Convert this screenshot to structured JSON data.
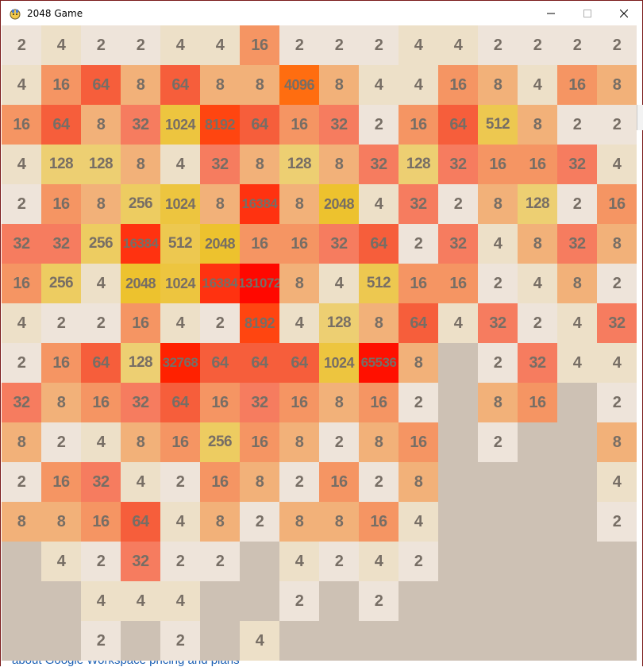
{
  "window": {
    "title": "2048 Game"
  },
  "icons": {
    "app": "game-icon",
    "minimize": "minimize-icon",
    "maximize": "maximize-icon",
    "close": "close-icon"
  },
  "background_link_text": "about Google Workspace pricing and plans",
  "colors": {
    "empty": "#cdc1b4",
    "2": "#eee4da",
    "4": "#ede0c8",
    "8": "#f2b179",
    "16": "#f59563",
    "32": "#f67c5f",
    "64": "#f65e3b",
    "128": "#edcf72",
    "256": "#edcc61",
    "512": "#edc850",
    "1024": "#edc53f",
    "2048": "#edc22e",
    "4096": "#ff6d10",
    "8192": "#ff4510",
    "16384": "#ff3210",
    "32768": "#ff2100",
    "65536": "#ff1000",
    "131072": "#ff0800"
  },
  "grid": [
    [
      2,
      4,
      2,
      2,
      4,
      4,
      16,
      2,
      2,
      2,
      4,
      4,
      2,
      2,
      2,
      2
    ],
    [
      4,
      16,
      64,
      8,
      64,
      8,
      8,
      4096,
      8,
      4,
      4,
      16,
      8,
      4,
      16,
      8
    ],
    [
      16,
      64,
      8,
      32,
      1024,
      8192,
      64,
      16,
      32,
      2,
      16,
      64,
      512,
      8,
      2,
      2
    ],
    [
      4,
      128,
      128,
      8,
      4,
      32,
      8,
      128,
      8,
      32,
      128,
      32,
      16,
      16,
      32,
      4
    ],
    [
      2,
      16,
      8,
      256,
      1024,
      8,
      16384,
      8,
      2048,
      4,
      32,
      2,
      8,
      128,
      2,
      16
    ],
    [
      32,
      32,
      256,
      16384,
      512,
      2048,
      16,
      16,
      32,
      64,
      2,
      32,
      4,
      8,
      32,
      8
    ],
    [
      16,
      256,
      4,
      2048,
      1024,
      16384,
      131072,
      8,
      4,
      512,
      16,
      16,
      2,
      4,
      8,
      2
    ],
    [
      4,
      2,
      2,
      16,
      4,
      2,
      8192,
      4,
      128,
      8,
      64,
      4,
      32,
      2,
      4,
      32
    ],
    [
      2,
      16,
      64,
      128,
      32768,
      64,
      64,
      64,
      1024,
      65536,
      8,
      0,
      2,
      32,
      4,
      4
    ],
    [
      32,
      8,
      16,
      32,
      64,
      16,
      32,
      16,
      8,
      16,
      2,
      0,
      8,
      16,
      0,
      2
    ],
    [
      8,
      2,
      4,
      8,
      16,
      256,
      16,
      8,
      2,
      8,
      16,
      0,
      2,
      0,
      0,
      8
    ],
    [
      2,
      16,
      32,
      4,
      2,
      16,
      8,
      2,
      16,
      2,
      8,
      0,
      0,
      0,
      0,
      4
    ],
    [
      8,
      8,
      16,
      64,
      4,
      8,
      2,
      8,
      8,
      16,
      4,
      0,
      0,
      0,
      0,
      2
    ],
    [
      0,
      4,
      2,
      32,
      2,
      2,
      0,
      4,
      2,
      4,
      2,
      0,
      0,
      0,
      0,
      0
    ],
    [
      0,
      0,
      4,
      4,
      4,
      0,
      0,
      2,
      0,
      2,
      0,
      0,
      0,
      0,
      0,
      0
    ],
    [
      0,
      0,
      2,
      0,
      2,
      0,
      4,
      0,
      0,
      0,
      0,
      0,
      0,
      0,
      0,
      0
    ]
  ]
}
